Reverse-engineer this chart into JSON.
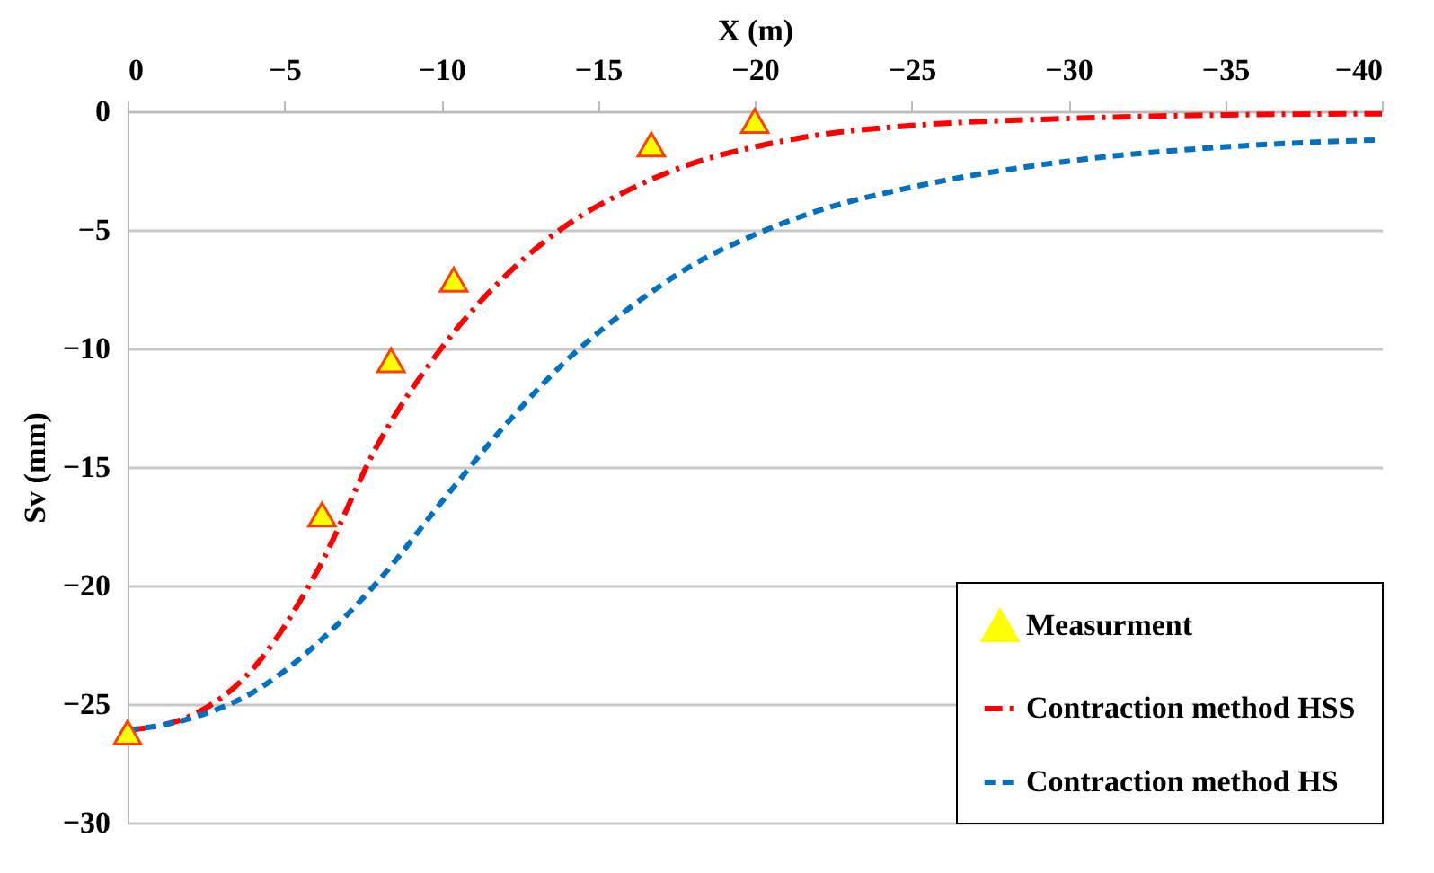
{
  "chart_data": {
    "type": "line",
    "xlabel": "X (m)",
    "ylabel": "Sv (mm)",
    "xlim": [
      0,
      -40
    ],
    "xticks": [
      0,
      -5,
      -10,
      -15,
      -20,
      -25,
      -30,
      -35,
      -40
    ],
    "ylim": [
      -30,
      0
    ],
    "yticks": [
      -30,
      -25,
      -20,
      -15,
      -10,
      -5,
      0
    ],
    "grid": "y",
    "legend": "bottom right",
    "series": [
      {
        "name": "Measurment",
        "type": "scatter",
        "marker": "triangle",
        "color": "#ffff00",
        "x": [
          0,
          -6.2,
          -8.4,
          -10.4,
          -16.7,
          -20.0
        ],
        "values": [
          -26.2,
          -17.0,
          -10.5,
          -7.1,
          -1.4,
          -0.4
        ]
      },
      {
        "name": "Contraction method HSS",
        "line_style": "dashdot",
        "color": "#ff0000",
        "x": [
          0,
          -2,
          -4,
          -6,
          -8,
          -10,
          -12,
          -14,
          -16,
          -18,
          -20,
          -22,
          -25,
          -30,
          -35,
          -40
        ],
        "values": [
          -26.1,
          -25.5,
          -23.5,
          -19.5,
          -14.0,
          -10.0,
          -7.0,
          -4.8,
          -3.3,
          -2.2,
          -1.5,
          -1.0,
          -0.6,
          -0.3,
          -0.15,
          -0.1
        ]
      },
      {
        "name": "Contraction method HS",
        "line_style": "dashed",
        "color": "#0070c0",
        "x": [
          0,
          -2,
          -4,
          -6,
          -8,
          -10,
          -12,
          -14,
          -16,
          -18,
          -20,
          -22,
          -25,
          -30,
          -35,
          -40
        ],
        "values": [
          -26.1,
          -25.6,
          -24.5,
          -22.5,
          -19.8,
          -16.5,
          -13.3,
          -10.5,
          -8.3,
          -6.5,
          -5.2,
          -4.2,
          -3.2,
          -2.1,
          -1.5,
          -1.2
        ]
      }
    ]
  }
}
